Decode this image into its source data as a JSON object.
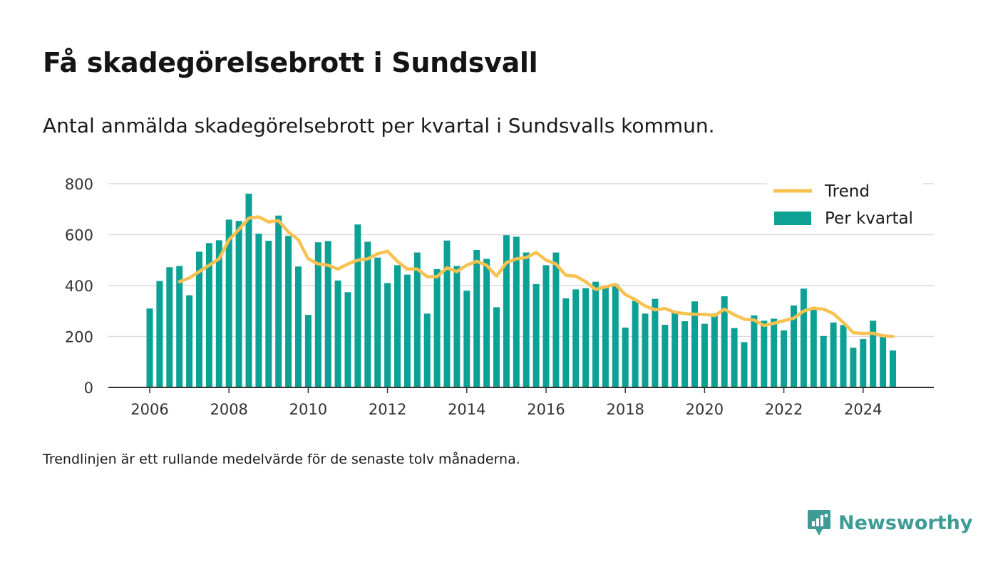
{
  "title": "Få skadegörelsebrott i Sundsvall",
  "subtitle": "Antal anmälda skadegörelsebrott per kvartal i Sundsvalls kommun.",
  "note": "Trendlinjen är ett rullande medelvärde för de senaste tolv månaderna.",
  "brand": {
    "name": "Newsworthy",
    "icon": "newsworthy-logo-icon"
  },
  "colors": {
    "bar": "#0da195",
    "trend": "#f9c150",
    "grid": "#dcdcdc",
    "axis": "#333333"
  },
  "chart_data": {
    "type": "bar",
    "x_start": 2006.0,
    "x_step": 0.25,
    "xlim": [
      2005.0,
      2026.0
    ],
    "ylim": [
      0,
      800
    ],
    "yticks": [
      "0",
      "200",
      "400",
      "600",
      "800"
    ],
    "xticks": [
      "2006",
      "2008",
      "2010",
      "2012",
      "2014",
      "2016",
      "2018",
      "2020",
      "2022",
      "2024"
    ],
    "legend_position": "top-right",
    "grid": "horizontal",
    "series": [
      {
        "name": "Per kvartal",
        "type": "bar",
        "values": [
          310,
          418,
          472,
          477,
          362,
          533,
          567,
          578,
          659,
          654,
          761,
          604,
          576,
          675,
          595,
          475,
          285,
          570,
          575,
          420,
          374,
          640,
          572,
          510,
          410,
          480,
          443,
          530,
          290,
          465,
          577,
          477,
          380,
          540,
          505,
          315,
          598,
          592,
          530,
          406,
          480,
          530,
          350,
          385,
          390,
          415,
          390,
          405,
          235,
          340,
          290,
          348,
          246,
          295,
          260,
          338,
          250,
          290,
          358,
          233,
          178,
          283,
          262,
          270,
          224,
          322,
          388,
          305,
          202,
          255,
          245,
          156,
          190,
          262,
          198,
          145
        ]
      },
      {
        "name": "Trend",
        "type": "line",
        "x_start": 2006.75,
        "values": [
          415,
          430,
          455,
          480,
          505,
          580,
          620,
          665,
          670,
          650,
          655,
          610,
          580,
          505,
          485,
          480,
          465,
          485,
          500,
          505,
          525,
          535,
          495,
          465,
          465,
          435,
          435,
          470,
          455,
          480,
          495,
          480,
          437,
          490,
          505,
          510,
          530,
          500,
          485,
          440,
          437,
          415,
          385,
          395,
          405,
          365,
          345,
          320,
          305,
          310,
          295,
          290,
          287,
          287,
          282,
          307,
          285,
          268,
          265,
          243,
          252,
          262,
          272,
          300,
          312,
          307,
          290,
          255,
          215,
          212,
          213,
          203,
          200
        ]
      }
    ]
  }
}
